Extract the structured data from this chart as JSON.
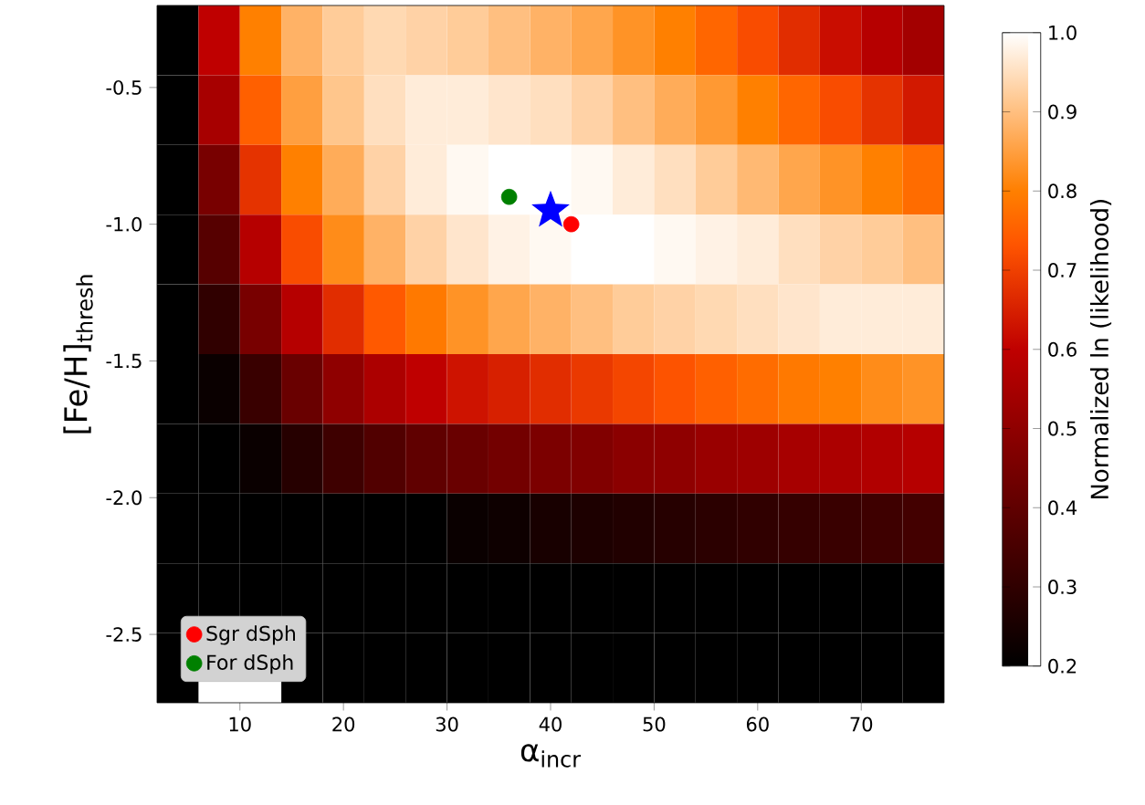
{
  "chart_data": {
    "type": "heatmap",
    "xlabel": "α$_{incr}$",
    "ylabel": "[Fe/H]$_{thresh}$",
    "clabel": "Normalized ln (likelihood)",
    "x": [
      4,
      8,
      12,
      16,
      20,
      24,
      28,
      32,
      36,
      40,
      44,
      48,
      52,
      56,
      60,
      64,
      68,
      72,
      76
    ],
    "y": [
      -0.3275,
      -0.5825,
      -0.8375,
      -1.0925,
      -1.3475,
      -1.6025,
      -1.8575,
      -2.1125,
      -2.3675,
      -2.6225
    ],
    "xlim": [
      2,
      78
    ],
    "ylim": [
      -2.75,
      -0.2
    ],
    "xticks": [
      10,
      20,
      30,
      40,
      50,
      60,
      70
    ],
    "yticks": [
      -2.5,
      {
        "value": -2,
        "label": "-2.0"
      },
      -1.5,
      {
        "value": -1,
        "label": "-1.0"
      },
      -0.5
    ],
    "clim": [
      0.2,
      1.0
    ],
    "cticks": [
      0.2,
      0.3,
      0.4,
      0.5,
      0.6,
      0.7,
      0.8,
      0.9,
      {
        "value": 1,
        "label": "1.0"
      }
    ],
    "cells": [
      [
        0.2,
        0.6,
        0.8,
        0.88,
        0.92,
        0.94,
        0.93,
        0.92,
        0.9,
        0.88,
        0.86,
        0.83,
        0.8,
        0.76,
        0.72,
        0.67,
        0.62,
        0.58,
        0.54
      ],
      [
        0.2,
        0.55,
        0.75,
        0.85,
        0.91,
        0.95,
        0.97,
        0.97,
        0.96,
        0.95,
        0.93,
        0.9,
        0.87,
        0.84,
        0.8,
        0.76,
        0.72,
        0.68,
        0.64
      ],
      [
        0.2,
        0.45,
        0.68,
        0.8,
        0.87,
        0.93,
        0.97,
        0.99,
        1.0,
        1.0,
        0.99,
        0.97,
        0.95,
        0.92,
        0.89,
        0.86,
        0.83,
        0.8,
        0.77
      ],
      [
        0.2,
        0.38,
        0.58,
        0.72,
        0.82,
        0.88,
        0.93,
        0.96,
        0.98,
        0.99,
        1.0,
        1.0,
        0.99,
        0.98,
        0.97,
        0.95,
        0.93,
        0.92,
        0.9
      ],
      [
        0.2,
        0.3,
        0.45,
        0.58,
        0.67,
        0.74,
        0.79,
        0.83,
        0.86,
        0.88,
        0.9,
        0.92,
        0.93,
        0.94,
        0.95,
        0.96,
        0.97,
        0.97,
        0.97
      ],
      [
        0.2,
        0.22,
        0.32,
        0.42,
        0.5,
        0.56,
        0.6,
        0.63,
        0.65,
        0.67,
        0.69,
        0.71,
        0.73,
        0.75,
        0.77,
        0.79,
        0.8,
        0.82,
        0.83
      ],
      [
        0.2,
        0.2,
        0.22,
        0.28,
        0.33,
        0.37,
        0.4,
        0.42,
        0.44,
        0.46,
        0.47,
        0.49,
        0.5,
        0.52,
        0.53,
        0.55,
        0.56,
        0.57,
        0.58
      ],
      [
        0.2,
        0.2,
        0.2,
        0.2,
        0.2,
        0.2,
        0.2,
        0.22,
        0.23,
        0.25,
        0.26,
        0.27,
        0.28,
        0.29,
        0.3,
        0.31,
        0.32,
        0.33,
        0.34
      ],
      [
        0.2,
        0.2,
        0.2,
        0.2,
        0.2,
        0.2,
        0.2,
        0.2,
        0.2,
        0.2,
        0.2,
        0.2,
        0.2,
        0.2,
        0.2,
        0.2,
        0.2,
        0.2,
        0.2
      ],
      [
        0.2,
        null,
        null,
        0.2,
        0.2,
        0.2,
        0.2,
        0.2,
        0.2,
        0.2,
        0.2,
        0.2,
        0.2,
        0.2,
        0.2,
        0.2,
        0.2,
        0.2,
        0.2
      ]
    ],
    "series": [
      {
        "type": "scatter",
        "name": "Sgr dSph",
        "color": "#ff0000",
        "marker": "circle",
        "x": [
          42
        ],
        "values": [
          -1.0
        ]
      },
      {
        "type": "scatter",
        "name": "For dSph",
        "color": "#008000",
        "marker": "circle",
        "x": [
          36
        ],
        "values": [
          -0.9
        ]
      },
      {
        "type": "scatter",
        "color": "#0000ff",
        "marker": "star",
        "x": [
          40
        ],
        "values": [
          -0.95
        ]
      }
    ],
    "legend": "bottom left"
  }
}
